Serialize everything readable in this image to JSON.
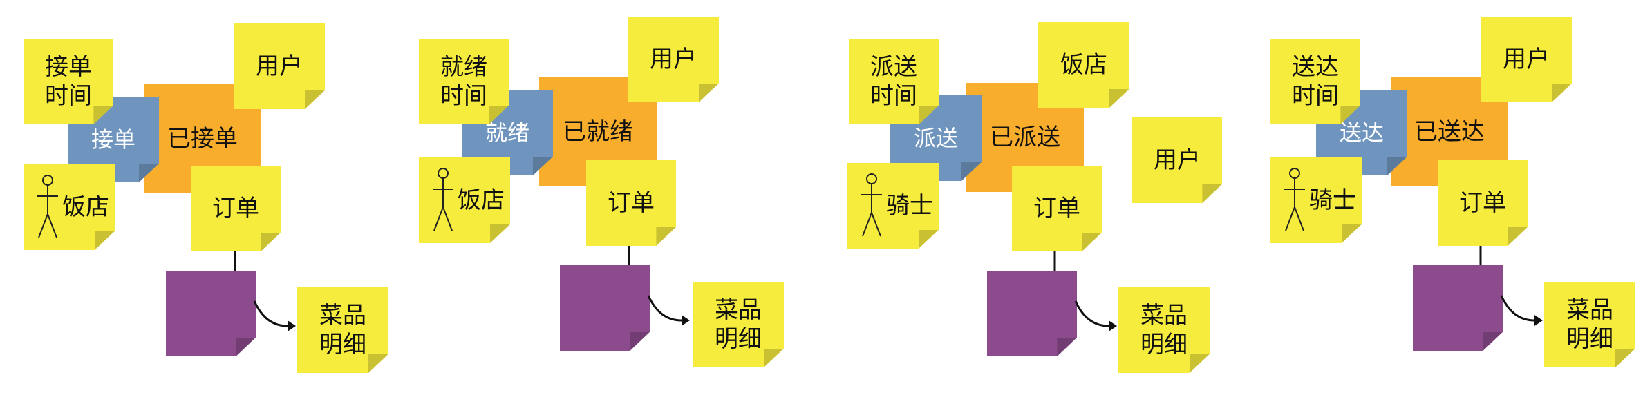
{
  "panels": [
    {
      "time": "接单\n时间",
      "command": "接单",
      "event": "已接单",
      "actor": "饭店",
      "aggregate": "订单",
      "user1": "用户",
      "user2": "",
      "detail": "菜品\n明细"
    },
    {
      "time": "就绪\n时间",
      "command": "就绪",
      "event": "已就绪",
      "actor": "饭店",
      "aggregate": "订单",
      "user1": "用户",
      "user2": "",
      "detail": "菜品\n明细"
    },
    {
      "time": "派送\n时间",
      "command": "派送",
      "event": "已派送",
      "actor": "骑士",
      "aggregate": "订单",
      "user1": "饭店",
      "user2": "用户",
      "detail": "菜品\n明细"
    },
    {
      "time": "送达\n时间",
      "command": "送达",
      "event": "已送达",
      "actor": "骑士",
      "aggregate": "订单",
      "user1": "用户",
      "user2": "",
      "detail": "菜品\n明细"
    }
  ],
  "colors": {
    "yellow": "#f6ec3d",
    "blue": "#6f95bf",
    "orange": "#f8ad2c",
    "purple": "#8b4b8c"
  }
}
